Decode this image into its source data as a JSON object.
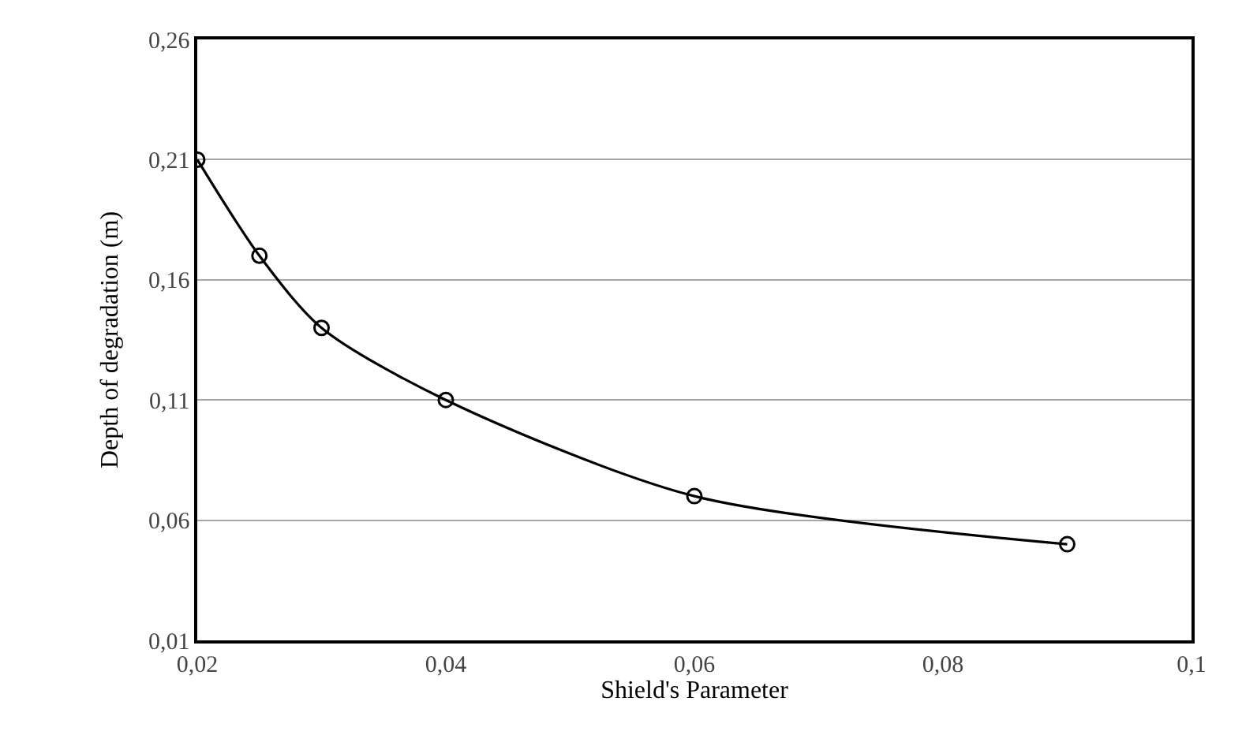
{
  "chart_data": {
    "type": "line",
    "xlabel": "Shield's Parameter",
    "ylabel": "Depth of degradation (m)",
    "x": [
      0.02,
      0.025,
      0.03,
      0.04,
      0.06,
      0.09
    ],
    "series": [
      {
        "color": "#000000",
        "values": [
          0.21,
          0.17,
          0.14,
          0.11,
          0.07,
          0.05
        ]
      }
    ],
    "xlim": [
      0.02,
      0.1
    ],
    "xticks": [
      {
        "value": 0.02,
        "label": "0,02"
      },
      {
        "value": 0.04,
        "label": "0,04"
      },
      {
        "value": 0.06,
        "label": "0,06"
      },
      {
        "value": 0.08,
        "label": "0,08"
      },
      {
        "value": 0.1,
        "label": "0,1"
      }
    ],
    "ylim": [
      0.01,
      0.26
    ],
    "yticks": [
      {
        "value": 0.01,
        "label": "0,01"
      },
      {
        "value": 0.06,
        "label": "0,06"
      },
      {
        "value": 0.11,
        "label": "0,11"
      },
      {
        "value": 0.16,
        "label": "0,16"
      },
      {
        "value": 0.21,
        "label": "0,21"
      },
      {
        "value": 0.26,
        "label": "0,26"
      }
    ],
    "grid": "y",
    "marker": "circle",
    "line_style": "solid"
  }
}
